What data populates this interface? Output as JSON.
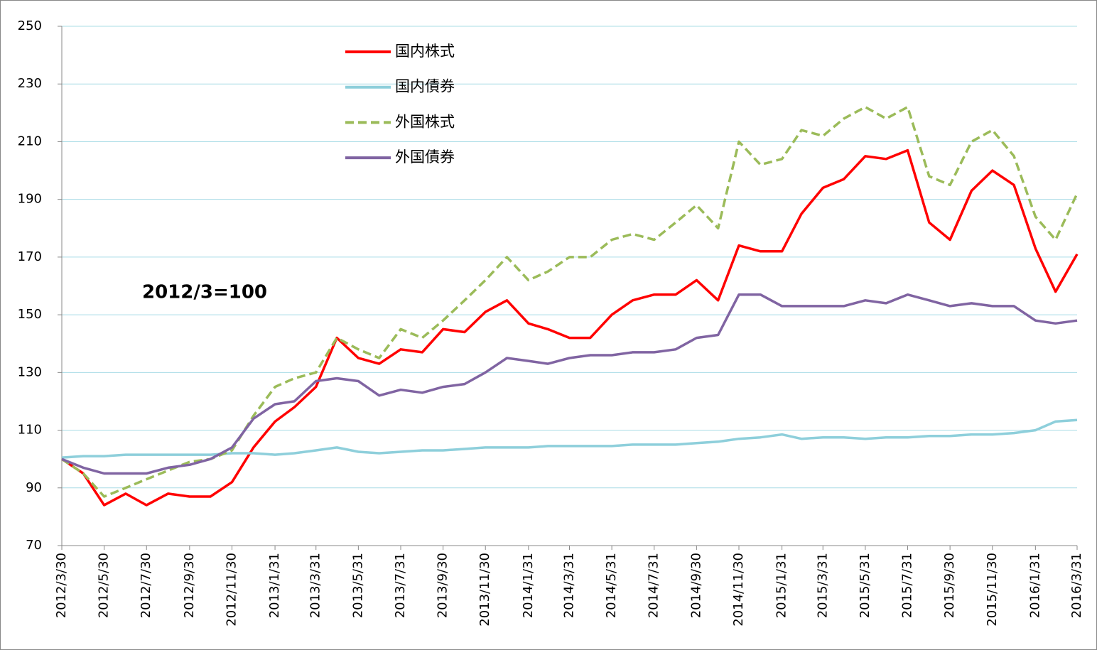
{
  "chart_data": {
    "type": "line",
    "annotation": "2012/3=100",
    "x": [
      "2012/3/30",
      "2012/4/30",
      "2012/5/30",
      "2012/6/30",
      "2012/7/30",
      "2012/8/30",
      "2012/9/30",
      "2012/10/30",
      "2012/11/30",
      "2012/12/31",
      "2013/1/31",
      "2013/2/28",
      "2013/3/31",
      "2013/4/30",
      "2013/5/31",
      "2013/6/30",
      "2013/7/31",
      "2013/8/31",
      "2013/9/30",
      "2013/10/31",
      "2013/11/30",
      "2013/12/31",
      "2014/1/31",
      "2014/2/28",
      "2014/3/31",
      "2014/4/30",
      "2014/5/31",
      "2014/6/30",
      "2014/7/31",
      "2014/8/31",
      "2014/9/30",
      "2014/10/31",
      "2014/11/30",
      "2014/12/31",
      "2015/1/31",
      "2015/2/28",
      "2015/3/31",
      "2015/4/30",
      "2015/5/31",
      "2015/6/30",
      "2015/7/31",
      "2015/8/31",
      "2015/9/30",
      "2015/10/31",
      "2015/11/30",
      "2015/12/31",
      "2016/1/31",
      "2016/2/29",
      "2016/3/31"
    ],
    "series": [
      {
        "name": "国内株式",
        "color": "#ff0000",
        "dash": false,
        "values": [
          100,
          95,
          84,
          88,
          84,
          88,
          87,
          87,
          92,
          104,
          113,
          118,
          125,
          142,
          135,
          133,
          138,
          137,
          145,
          144,
          151,
          155,
          147,
          145,
          142,
          142,
          150,
          155,
          157,
          157,
          162,
          155,
          174,
          172,
          172,
          185,
          194,
          197,
          205,
          204,
          207,
          182,
          176,
          193,
          200,
          195,
          173,
          158,
          171
        ]
      },
      {
        "name": "国内債券",
        "color": "#8ecfdb",
        "dash": false,
        "values": [
          100.5,
          101,
          101,
          101.5,
          101.5,
          101.5,
          101.5,
          101.5,
          102,
          102,
          101.5,
          102,
          103,
          104,
          102.5,
          102,
          102.5,
          103,
          103,
          103.5,
          104,
          104,
          104,
          104.5,
          104.5,
          104.5,
          104.5,
          105,
          105,
          105,
          105.5,
          106,
          107,
          107.5,
          108.5,
          107,
          107.5,
          107.5,
          107,
          107.5,
          107.5,
          108,
          108,
          108.5,
          108.5,
          109,
          110,
          113,
          113.5
        ]
      },
      {
        "name": "外国株式",
        "color": "#9bbb59",
        "dash": true,
        "values": [
          100,
          95,
          87,
          90,
          93,
          96,
          99,
          100,
          103,
          115,
          125,
          128,
          130,
          142,
          138,
          135,
          145,
          142,
          148,
          155,
          162,
          170,
          162,
          165,
          170,
          170,
          176,
          178,
          176,
          182,
          188,
          180,
          210,
          202,
          204,
          214,
          212,
          218,
          222,
          218,
          222,
          198,
          195,
          210,
          214,
          205,
          184,
          176,
          192
        ]
      },
      {
        "name": "外国債券",
        "color": "#8064a2",
        "dash": false,
        "values": [
          100,
          97,
          95,
          95,
          95,
          97,
          98,
          100,
          104,
          114,
          119,
          120,
          127,
          128,
          127,
          122,
          124,
          123,
          125,
          126,
          130,
          135,
          134,
          133,
          135,
          136,
          136,
          137,
          137,
          138,
          142,
          143,
          157,
          157,
          153,
          153,
          153,
          153,
          155,
          154,
          157,
          155,
          153,
          154,
          153,
          153,
          148,
          147,
          148
        ]
      }
    ],
    "xlim": [
      "2012/3/30",
      "2016/3/31"
    ],
    "xticks": [
      "2012/3/30",
      "2012/5/30",
      "2012/7/30",
      "2012/9/30",
      "2012/11/30",
      "2013/1/31",
      "2013/3/31",
      "2013/5/31",
      "2013/7/31",
      "2013/9/30",
      "2013/11/30",
      "2014/1/31",
      "2014/3/31",
      "2014/5/31",
      "2014/7/31",
      "2014/9/30",
      "2014/11/30",
      "2015/1/31",
      "2015/3/31",
      "2015/5/31",
      "2015/7/31",
      "2015/9/30",
      "2015/11/30",
      "2016/1/31",
      "2016/3/31"
    ],
    "ylim": [
      70,
      250
    ],
    "yticks": [
      70,
      90,
      110,
      130,
      150,
      170,
      190,
      210,
      230,
      250
    ],
    "grid": true
  }
}
